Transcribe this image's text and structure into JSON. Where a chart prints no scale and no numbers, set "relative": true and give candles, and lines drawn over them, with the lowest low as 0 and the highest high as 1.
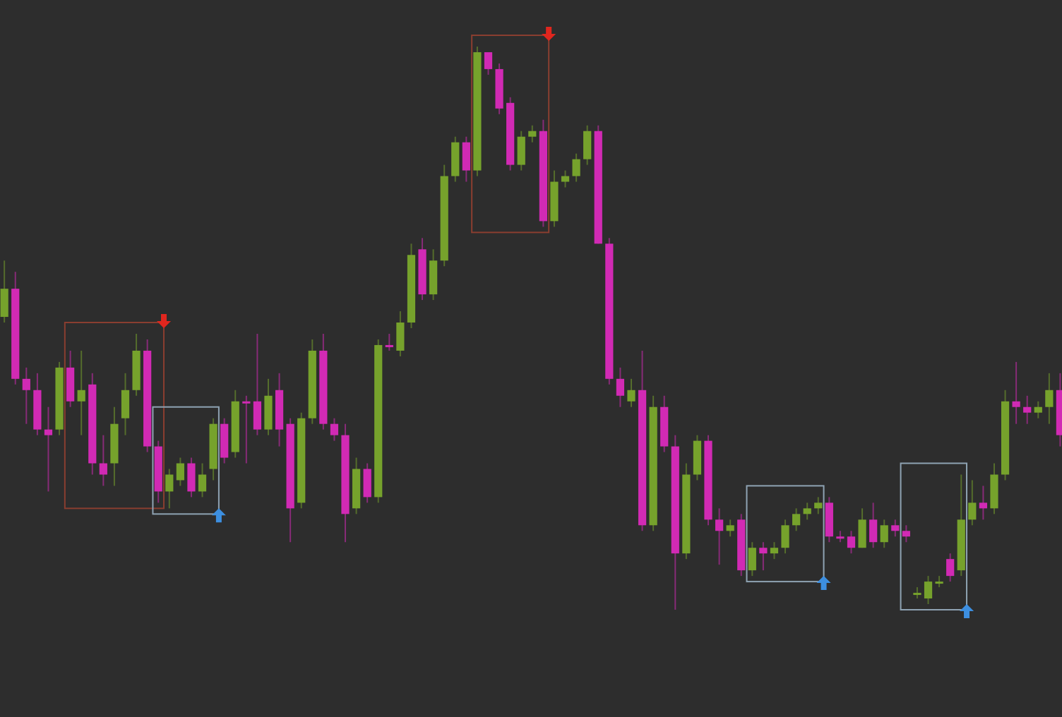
{
  "chart_data": {
    "type": "candlestick",
    "relative": true,
    "categories": [
      null,
      null,
      null,
      null,
      null,
      null,
      null,
      null,
      null,
      null,
      null,
      null,
      null,
      null,
      null,
      null,
      null,
      null,
      null,
      null,
      null,
      null,
      null,
      null,
      null,
      null,
      null,
      null,
      null,
      null,
      null,
      null,
      null,
      null,
      null,
      null,
      null,
      null,
      null,
      null,
      null,
      null,
      null,
      null,
      null,
      null,
      null,
      null,
      null,
      null,
      null,
      null,
      null,
      null,
      null,
      null,
      null,
      null,
      null,
      null,
      null,
      null,
      null,
      null,
      null,
      null,
      null,
      null,
      null,
      null,
      null,
      null,
      null,
      null,
      null,
      null,
      null,
      null,
      null,
      null,
      null,
      null,
      null,
      null,
      null,
      null,
      null,
      null,
      null,
      null,
      null,
      null,
      null,
      null,
      null,
      null,
      null
    ],
    "ohlc": [
      [
        0.52,
        0.62,
        0.51,
        0.57
      ],
      [
        0.57,
        0.6,
        0.4,
        0.41
      ],
      [
        0.41,
        0.43,
        0.33,
        0.39
      ],
      [
        0.39,
        0.42,
        0.31,
        0.32
      ],
      [
        0.32,
        0.36,
        0.21,
        0.31
      ],
      [
        0.32,
        0.44,
        0.31,
        0.43
      ],
      [
        0.43,
        0.46,
        0.36,
        0.37
      ],
      [
        0.37,
        0.46,
        0.31,
        0.39
      ],
      [
        0.4,
        0.42,
        0.24,
        0.26
      ],
      [
        0.26,
        0.31,
        0.22,
        0.24
      ],
      [
        0.26,
        0.36,
        0.22,
        0.33
      ],
      [
        0.34,
        0.42,
        0.31,
        0.39
      ],
      [
        0.39,
        0.49,
        0.38,
        0.46
      ],
      [
        0.46,
        0.48,
        0.28,
        0.29
      ],
      [
        0.29,
        0.3,
        0.19,
        0.21
      ],
      [
        0.21,
        0.25,
        0.18,
        0.24
      ],
      [
        0.23,
        0.27,
        0.22,
        0.26
      ],
      [
        0.26,
        0.27,
        0.2,
        0.21
      ],
      [
        0.21,
        0.26,
        0.2,
        0.24
      ],
      [
        0.25,
        0.34,
        0.23,
        0.33
      ],
      [
        0.33,
        0.34,
        0.26,
        0.27
      ],
      [
        0.28,
        0.39,
        0.27,
        0.37
      ],
      [
        0.37,
        0.38,
        0.26,
        0.37
      ],
      [
        0.37,
        0.49,
        0.31,
        0.32
      ],
      [
        0.32,
        0.41,
        0.31,
        0.38
      ],
      [
        0.39,
        0.42,
        0.29,
        0.32
      ],
      [
        0.33,
        0.34,
        0.12,
        0.18
      ],
      [
        0.19,
        0.35,
        0.18,
        0.34
      ],
      [
        0.34,
        0.48,
        0.33,
        0.46
      ],
      [
        0.46,
        0.49,
        0.32,
        0.33
      ],
      [
        0.33,
        0.34,
        0.3,
        0.31
      ],
      [
        0.31,
        0.33,
        0.12,
        0.17
      ],
      [
        0.18,
        0.27,
        0.17,
        0.25
      ],
      [
        0.25,
        0.26,
        0.19,
        0.2
      ],
      [
        0.2,
        0.48,
        0.19,
        0.47
      ],
      [
        0.47,
        0.49,
        0.46,
        0.47
      ],
      [
        0.46,
        0.53,
        0.45,
        0.51
      ],
      [
        0.51,
        0.65,
        0.5,
        0.63
      ],
      [
        0.64,
        0.66,
        0.55,
        0.56
      ],
      [
        0.56,
        0.64,
        0.55,
        0.62
      ],
      [
        0.62,
        0.79,
        0.61,
        0.77
      ],
      [
        0.77,
        0.84,
        0.76,
        0.83
      ],
      [
        0.83,
        0.84,
        0.76,
        0.78
      ],
      [
        0.78,
        1.0,
        0.77,
        0.99
      ],
      [
        0.99,
        0.99,
        0.95,
        0.96
      ],
      [
        0.96,
        0.97,
        0.88,
        0.89
      ],
      [
        0.9,
        0.91,
        0.78,
        0.79
      ],
      [
        0.79,
        0.85,
        0.78,
        0.84
      ],
      [
        0.84,
        0.86,
        0.83,
        0.85
      ],
      [
        0.85,
        0.87,
        0.68,
        0.69
      ],
      [
        0.69,
        0.78,
        0.68,
        0.76
      ],
      [
        0.76,
        0.78,
        0.75,
        0.77
      ],
      [
        0.77,
        0.81,
        0.76,
        0.8
      ],
      [
        0.8,
        0.86,
        0.79,
        0.85
      ],
      [
        0.85,
        0.86,
        0.65,
        0.65
      ],
      [
        0.65,
        0.66,
        0.4,
        0.41
      ],
      [
        0.41,
        0.43,
        0.36,
        0.38
      ],
      [
        0.37,
        0.41,
        0.36,
        0.39
      ],
      [
        0.39,
        0.46,
        0.14,
        0.15
      ],
      [
        0.15,
        0.38,
        0.14,
        0.36
      ],
      [
        0.36,
        0.38,
        0.28,
        0.29
      ],
      [
        0.29,
        0.31,
        0,
        0.1
      ],
      [
        0.1,
        0.26,
        0.09,
        0.24
      ],
      [
        0.24,
        0.31,
        0.23,
        0.3
      ],
      [
        0.3,
        0.31,
        0.15,
        0.16
      ],
      [
        0.16,
        0.18,
        0.08,
        0.14
      ],
      [
        0.14,
        0.16,
        0.13,
        0.15
      ],
      [
        0.16,
        0.17,
        0.06,
        0.07
      ],
      [
        0.07,
        0.12,
        0.06,
        0.11
      ],
      [
        0.11,
        0.12,
        0.07,
        0.1
      ],
      [
        0.1,
        0.12,
        0.09,
        0.11
      ],
      [
        0.11,
        0.16,
        0.1,
        0.15
      ],
      [
        0.15,
        0.18,
        0.14,
        0.17
      ],
      [
        0.17,
        0.19,
        0.16,
        0.18
      ],
      [
        0.18,
        0.2,
        0.17,
        0.19
      ],
      [
        0.19,
        0.2,
        0.12,
        0.13
      ],
      [
        0.13,
        0.14,
        0.12,
        0.13
      ],
      [
        0.13,
        0.14,
        0.1,
        0.11
      ],
      [
        0.11,
        0.18,
        0.11,
        0.16
      ],
      [
        0.16,
        0.19,
        0.11,
        0.12
      ],
      [
        0.12,
        0.16,
        0.11,
        0.15
      ],
      [
        0.15,
        0.16,
        0.13,
        0.14
      ],
      [
        0.14,
        0.15,
        0.12,
        0.13
      ],
      [
        0.03,
        0.04,
        0.02,
        0.03
      ],
      [
        0.02,
        0.06,
        0.01,
        0.05
      ],
      [
        0.05,
        0.06,
        0.04,
        0.05
      ],
      [
        0.09,
        0.1,
        0.05,
        0.06
      ],
      [
        0.07,
        0.24,
        0.06,
        0.16
      ],
      [
        0.16,
        0.23,
        0.15,
        0.19
      ],
      [
        0.19,
        0.22,
        0.16,
        0.18
      ],
      [
        0.18,
        0.26,
        0.17,
        0.24
      ],
      [
        0.24,
        0.39,
        0.23,
        0.37
      ],
      [
        0.37,
        0.44,
        0.33,
        0.36
      ],
      [
        0.36,
        0.38,
        0.33,
        0.35
      ],
      [
        0.35,
        0.37,
        0.34,
        0.36
      ],
      [
        0.36,
        0.42,
        0.33,
        0.39
      ],
      [
        0.39,
        0.42,
        0.29,
        0.31
      ]
    ],
    "colors": [
      "#76a22c",
      "#d12ab4",
      "#d12ab4",
      "#d12ab4",
      "#d12ab4",
      "#76a22c",
      "#d12ab4",
      "#76a22c",
      "#d12ab4",
      "#d12ab4",
      "#76a22c",
      "#76a22c",
      "#76a22c",
      "#d12ab4",
      "#d12ab4",
      "#76a22c",
      "#76a22c",
      "#d12ab4",
      "#76a22c",
      "#76a22c",
      "#d12ab4",
      "#76a22c",
      "#d12ab4",
      "#d12ab4",
      "#76a22c",
      "#d12ab4",
      "#d12ab4",
      "#76a22c",
      "#76a22c",
      "#d12ab4",
      "#d12ab4",
      "#d12ab4",
      "#76a22c",
      "#d12ab4",
      "#76a22c",
      "#d12ab4",
      "#76a22c",
      "#76a22c",
      "#d12ab4",
      "#76a22c",
      "#76a22c",
      "#76a22c",
      "#d12ab4",
      "#76a22c",
      "#d12ab4",
      "#d12ab4",
      "#d12ab4",
      "#76a22c",
      "#76a22c",
      "#d12ab4",
      "#76a22c",
      "#76a22c",
      "#76a22c",
      "#76a22c",
      "#d12ab4",
      "#d12ab4",
      "#d12ab4",
      "#76a22c",
      "#d12ab4",
      "#76a22c",
      "#d12ab4",
      "#d12ab4",
      "#76a22c",
      "#76a22c",
      "#d12ab4",
      "#d12ab4",
      "#76a22c",
      "#d12ab4",
      "#76a22c",
      "#d12ab4",
      "#76a22c",
      "#76a22c",
      "#76a22c",
      "#76a22c",
      "#76a22c",
      "#d12ab4",
      "#d12ab4",
      "#d12ab4",
      "#76a22c",
      "#d12ab4",
      "#76a22c",
      "#d12ab4",
      "#d12ab4",
      "#76a22c",
      "#76a22c",
      "#76a22c",
      "#d12ab4",
      "#76a22c",
      "#76a22c",
      "#d12ab4",
      "#76a22c",
      "#76a22c",
      "#d12ab4",
      "#d12ab4",
      "#76a22c",
      "#76a22c",
      "#d12ab4"
    ]
  }
}
